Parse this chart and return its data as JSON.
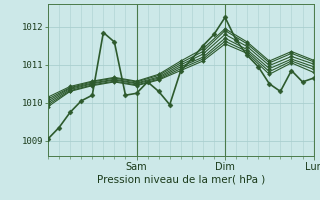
{
  "bg_color": "#cce8e8",
  "grid_color": "#aacfcf",
  "line_color": "#2d5a2d",
  "xlabel": "Pression niveau de la mer( hPa )",
  "yticks": [
    1009,
    1010,
    1011,
    1012
  ],
  "ylim": [
    1008.6,
    1012.6
  ],
  "xlim": [
    0,
    72
  ],
  "day_ticks": [
    24,
    48,
    72
  ],
  "day_labels": [
    "Sam",
    "Dim",
    "Lun"
  ],
  "series": [
    {
      "x": [
        0,
        3,
        6,
        9,
        12,
        15,
        18,
        21,
        24,
        27,
        30,
        33,
        36,
        39,
        42,
        45,
        48,
        51,
        54,
        57,
        60,
        63,
        66,
        69,
        72
      ],
      "y": [
        1009.05,
        1009.35,
        1009.75,
        1010.05,
        1010.2,
        1011.85,
        1011.6,
        1010.2,
        1010.25,
        1010.55,
        1010.3,
        1009.95,
        1010.85,
        1011.15,
        1011.5,
        1011.8,
        1012.25,
        1011.65,
        1011.25,
        1010.95,
        1010.5,
        1010.3,
        1010.85,
        1010.55,
        1010.65
      ],
      "lw": 1.2,
      "marker": "D",
      "ms": 2.5
    },
    {
      "x": [
        0,
        6,
        12,
        18,
        24,
        30,
        36,
        42,
        48,
        54,
        60,
        66,
        72
      ],
      "y": [
        1009.9,
        1010.3,
        1010.45,
        1010.55,
        1010.45,
        1010.6,
        1010.85,
        1011.1,
        1011.55,
        1011.3,
        1010.75,
        1011.05,
        1010.8
      ],
      "lw": 0.8,
      "marker": "D",
      "ms": 2.0
    },
    {
      "x": [
        0,
        6,
        12,
        18,
        24,
        30,
        36,
        42,
        48,
        54,
        60,
        66,
        72
      ],
      "y": [
        1009.95,
        1010.32,
        1010.47,
        1010.57,
        1010.47,
        1010.62,
        1010.9,
        1011.15,
        1011.62,
        1011.35,
        1010.82,
        1011.1,
        1010.88
      ],
      "lw": 0.8,
      "marker": "D",
      "ms": 2.0
    },
    {
      "x": [
        0,
        6,
        12,
        18,
        24,
        30,
        36,
        42,
        48,
        54,
        60,
        66,
        72
      ],
      "y": [
        1010.0,
        1010.35,
        1010.5,
        1010.6,
        1010.5,
        1010.65,
        1010.95,
        1011.2,
        1011.7,
        1011.4,
        1010.9,
        1011.15,
        1010.95
      ],
      "lw": 0.8,
      "marker": "D",
      "ms": 2.0
    },
    {
      "x": [
        0,
        6,
        12,
        18,
        24,
        30,
        36,
        42,
        48,
        54,
        60,
        66,
        72
      ],
      "y": [
        1010.05,
        1010.38,
        1010.52,
        1010.62,
        1010.52,
        1010.68,
        1011.0,
        1011.28,
        1011.8,
        1011.48,
        1010.98,
        1011.22,
        1011.02
      ],
      "lw": 0.8,
      "marker": "D",
      "ms": 2.0
    },
    {
      "x": [
        0,
        6,
        12,
        18,
        24,
        30,
        36,
        42,
        48,
        54,
        60,
        66,
        72
      ],
      "y": [
        1010.1,
        1010.4,
        1010.55,
        1010.65,
        1010.55,
        1010.72,
        1011.05,
        1011.35,
        1011.9,
        1011.55,
        1011.05,
        1011.3,
        1011.08
      ],
      "lw": 0.8,
      "marker": "D",
      "ms": 2.0
    },
    {
      "x": [
        0,
        6,
        12,
        18,
        24,
        30,
        36,
        42,
        48,
        54,
        60,
        66,
        72
      ],
      "y": [
        1010.15,
        1010.43,
        1010.57,
        1010.67,
        1010.57,
        1010.75,
        1011.1,
        1011.42,
        1011.95,
        1011.6,
        1011.1,
        1011.35,
        1011.12
      ],
      "lw": 0.8,
      "marker": "D",
      "ms": 2.0
    }
  ]
}
